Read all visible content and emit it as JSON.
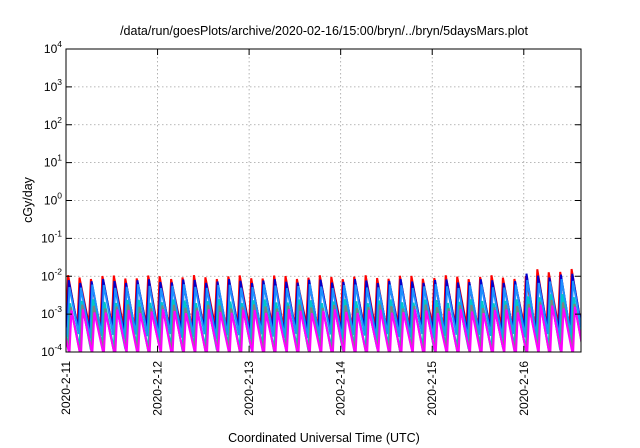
{
  "chart_data": {
    "type": "line",
    "title": "/data/run/goesPlots/archive/2020-02-16/15:00/bryn/../bryn/5daysMars.plot",
    "xlabel": "Coordinated Universal Time (UTC)",
    "ylabel": "cGy/day",
    "yscale": "log",
    "ylim": [
      0.0001,
      10000
    ],
    "yticks": [
      {
        "base": "10",
        "exp": "4",
        "value": 10000
      },
      {
        "base": "10",
        "exp": "3",
        "value": 1000
      },
      {
        "base": "10",
        "exp": "2",
        "value": 100
      },
      {
        "base": "10",
        "exp": "1",
        "value": 10
      },
      {
        "base": "10",
        "exp": "0",
        "value": 1
      },
      {
        "base": "10",
        "exp": "-1",
        "value": 0.1
      },
      {
        "base": "10",
        "exp": "-2",
        "value": 0.01
      },
      {
        "base": "10",
        "exp": "-3",
        "value": 0.001
      },
      {
        "base": "10",
        "exp": "-4",
        "value": 0.0001
      }
    ],
    "xlim": [
      "2020-02-11",
      "2020-02-16T15:00"
    ],
    "xticks": [
      "2020-2-11",
      "2020-2-12",
      "2020-2-13",
      "2020-2-14",
      "2020-2-15",
      "2020-2-16"
    ],
    "grid": true,
    "legend": "none",
    "sawtooth_cycles_per_day": 8,
    "series": [
      {
        "color": "#ff0000",
        "peak": 0.0095,
        "trough": 0.00048,
        "late_peak": 0.014
      },
      {
        "color": "#0000cd",
        "peak": 0.0075,
        "trough": 0.00036,
        "late_peak": 0.0105
      },
      {
        "color": "#1e90ff",
        "peak": 0.0055,
        "trough": 0.00026,
        "late_peak": 0.0075
      },
      {
        "color": "#00c8c8",
        "peak": 0.0022,
        "trough": 0.00013,
        "late_peak": 0.0031
      },
      {
        "color": "#808080",
        "peak": 0.0016,
        "trough": 0.0001,
        "late_peak": 0.0021
      },
      {
        "color": "#ff00ff",
        "peak": 0.0012,
        "trough": 8e-05,
        "late_peak": 0.0016
      }
    ]
  }
}
